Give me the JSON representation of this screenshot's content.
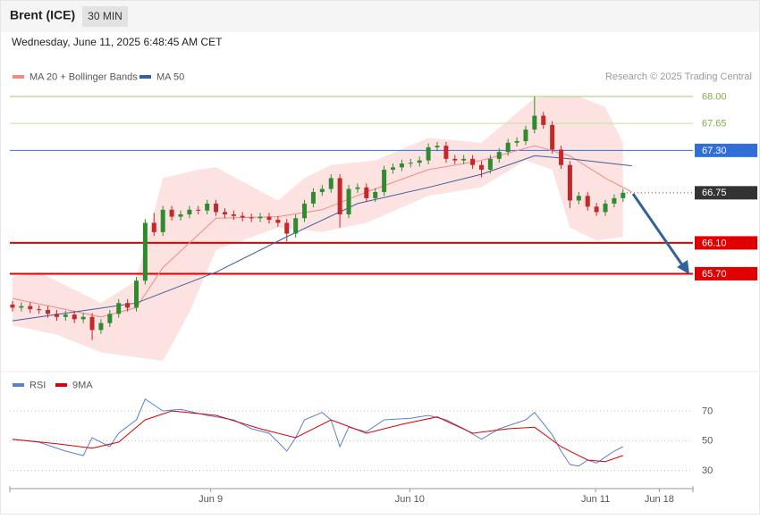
{
  "header": {
    "title": "Brent (ICE)",
    "timeframe": "30 MIN",
    "timestamp": "Wednesday, June 11, 2025 6:48:45 AM CET",
    "attribution": "Research © 2025 Trading Central"
  },
  "chart_data": [
    {
      "type": "candlestick",
      "up_color": "#2e8b2e",
      "down_color": "#c62828",
      "xlim": [
        -0.3,
        76.9
      ],
      "ylim": [
        64.5,
        68.15
      ],
      "x": [
        0,
        1,
        2,
        3,
        4,
        5,
        6,
        7,
        8,
        9,
        10,
        11,
        12,
        13,
        14,
        15,
        16,
        17,
        18,
        19,
        20,
        21,
        22,
        23,
        24,
        25,
        26,
        27,
        28,
        29,
        30,
        31,
        32,
        33,
        34,
        35,
        36,
        37,
        38,
        39,
        40,
        41,
        42,
        43,
        44,
        45,
        46,
        47,
        48,
        49,
        50,
        51,
        52,
        53,
        54,
        55,
        56,
        57,
        58,
        59,
        60,
        61,
        62,
        63,
        64,
        65,
        66,
        67,
        68,
        69
      ],
      "open": [
        65.3,
        65.26,
        65.28,
        65.24,
        65.23,
        65.18,
        65.14,
        65.17,
        65.11,
        65.14,
        64.97,
        65.06,
        65.18,
        65.32,
        65.26,
        65.61,
        66.36,
        66.24,
        66.53,
        66.44,
        66.47,
        66.53,
        66.52,
        66.61,
        66.5,
        66.47,
        66.45,
        66.43,
        66.42,
        66.44,
        66.4,
        66.36,
        66.22,
        66.42,
        66.61,
        66.76,
        66.8,
        66.94,
        66.47,
        66.8,
        66.82,
        66.68,
        66.76,
        67.05,
        67.08,
        67.13,
        67.14,
        67.17,
        67.34,
        67.36,
        67.19,
        67.17,
        67.19,
        67.11,
        67.05,
        67.19,
        67.28,
        67.4,
        67.42,
        67.57,
        67.75,
        67.63,
        67.31,
        67.11,
        66.65,
        66.71,
        66.57,
        66.5,
        66.61,
        66.68
      ],
      "high": [
        65.35,
        65.33,
        65.33,
        65.29,
        65.28,
        65.23,
        65.22,
        65.22,
        65.19,
        65.19,
        65.11,
        65.23,
        65.37,
        65.37,
        65.66,
        66.41,
        66.49,
        66.58,
        66.58,
        66.52,
        66.58,
        66.58,
        66.66,
        66.66,
        66.55,
        66.52,
        66.5,
        66.48,
        66.49,
        66.49,
        66.45,
        66.41,
        66.47,
        66.66,
        66.81,
        66.85,
        66.99,
        66.99,
        66.85,
        66.87,
        66.87,
        66.81,
        67.1,
        67.13,
        67.18,
        67.19,
        67.22,
        67.39,
        67.41,
        67.41,
        67.24,
        67.24,
        67.24,
        67.16,
        67.24,
        67.33,
        67.45,
        67.47,
        67.62,
        68.0,
        67.8,
        67.68,
        67.36,
        67.16,
        66.76,
        66.76,
        66.62,
        66.66,
        66.73,
        66.8
      ],
      "low": [
        65.21,
        65.21,
        65.19,
        65.18,
        65.13,
        65.09,
        65.09,
        65.06,
        65.06,
        64.84,
        64.92,
        65.01,
        65.13,
        65.21,
        65.21,
        65.56,
        66.19,
        66.19,
        66.39,
        66.39,
        66.42,
        66.47,
        66.47,
        66.45,
        66.42,
        66.4,
        66.38,
        66.37,
        66.37,
        66.35,
        66.31,
        66.12,
        66.17,
        66.37,
        66.56,
        66.71,
        66.75,
        66.3,
        66.42,
        66.75,
        66.63,
        66.63,
        66.71,
        67.0,
        67.03,
        67.08,
        67.09,
        67.12,
        67.29,
        67.14,
        67.12,
        67.12,
        67.06,
        66.95,
        67.0,
        67.14,
        67.23,
        67.35,
        67.37,
        67.52,
        67.58,
        67.26,
        67.06,
        66.55,
        66.6,
        66.52,
        66.45,
        66.45,
        66.56,
        66.63
      ],
      "close": [
        65.26,
        65.28,
        65.24,
        65.23,
        65.18,
        65.14,
        65.17,
        65.11,
        65.14,
        64.97,
        65.06,
        65.18,
        65.32,
        65.26,
        65.61,
        66.36,
        66.24,
        66.53,
        66.44,
        66.47,
        66.53,
        66.52,
        66.61,
        66.5,
        66.47,
        66.45,
        66.43,
        66.42,
        66.44,
        66.4,
        66.36,
        66.22,
        66.42,
        66.61,
        66.76,
        66.8,
        66.94,
        66.47,
        66.8,
        66.82,
        66.68,
        66.76,
        67.05,
        67.08,
        67.13,
        67.14,
        67.17,
        67.34,
        67.36,
        67.19,
        67.17,
        67.19,
        67.11,
        67.05,
        67.19,
        67.28,
        67.4,
        67.42,
        67.57,
        67.75,
        67.63,
        67.31,
        67.11,
        66.65,
        66.71,
        66.57,
        66.5,
        66.61,
        66.68,
        66.75
      ],
      "bands": {
        "color": "#fde2e2",
        "upper": {
          "x": [
            0,
            3,
            10,
            14,
            17,
            21,
            23,
            30,
            33,
            36,
            41,
            47,
            53,
            59,
            61,
            64,
            67,
            69
          ],
          "values": [
            65.66,
            65.72,
            65.32,
            65.61,
            66.94,
            67.05,
            67.08,
            66.65,
            66.94,
            67.11,
            67.17,
            67.46,
            67.4,
            67.98,
            68.0,
            68.0,
            67.86,
            67.4
          ]
        },
        "lower": {
          "x": [
            0,
            5,
            10,
            17,
            20,
            23,
            30,
            35,
            40,
            47,
            53,
            58,
            61,
            63,
            66,
            69
          ],
          "values": [
            65.03,
            64.91,
            64.68,
            64.57,
            65.2,
            66.01,
            66.3,
            66.24,
            66.36,
            66.71,
            66.82,
            67.17,
            67.05,
            66.3,
            66.13,
            66.18
          ]
        }
      },
      "series": [
        {
          "name": "MA 20 + Bollinger Bands",
          "color": "#f28b82",
          "x": [
            0,
            5,
            10,
            14,
            17,
            23,
            30,
            35,
            40,
            47,
            53,
            59,
            63,
            67,
            70
          ],
          "values": [
            65.38,
            65.26,
            65.14,
            65.26,
            65.78,
            66.42,
            66.44,
            66.53,
            66.76,
            67.05,
            67.17,
            67.36,
            67.23,
            66.94,
            66.76
          ]
        },
        {
          "name": "MA 50",
          "color": "#3a5fa0",
          "x": [
            0,
            14,
            23,
            31,
            39,
            47,
            53,
            59,
            63,
            70
          ],
          "values": [
            65.09,
            65.32,
            65.72,
            66.18,
            66.61,
            66.82,
            66.99,
            67.23,
            67.19,
            67.1
          ]
        }
      ],
      "levels": [
        {
          "value": 68,
          "label": "68.00",
          "color": "#9ccc65",
          "text_color": "#7cb342",
          "box": false,
          "width": 1,
          "dotted": false
        },
        {
          "value": 67.65,
          "label": "67.65",
          "color": "#c5e1a5",
          "text_color": "#7cb342",
          "box": false,
          "width": 1,
          "dotted": false
        },
        {
          "value": 67.3,
          "label": "67.30",
          "color": "#2f6fd6",
          "text_color": "#ffffff",
          "box": true,
          "width": 1,
          "dotted": false
        },
        {
          "value": 66.75,
          "label": "66.75",
          "color": "#333333",
          "text_color": "#ffffff",
          "box": true,
          "width": 1,
          "dotted": true
        },
        {
          "value": 66.1,
          "label": "66.10",
          "color": "#e00000",
          "text_color": "#ffffff",
          "box": true,
          "width": 2,
          "dotted": false
        },
        {
          "value": 65.7,
          "label": "65.70",
          "color": "#e00000",
          "text_color": "#ffffff",
          "box": true,
          "width": 2,
          "dotted": false
        }
      ]
    },
    {
      "type": "line",
      "xlim": [
        -0.3,
        76.9
      ],
      "ylim": [
        19,
        82
      ],
      "yticks": [
        30,
        50,
        70
      ],
      "grid": true,
      "xticks": [
        {
          "value": 22.4,
          "label": "Jun 9"
        },
        {
          "value": 44.9,
          "label": "Jun 10"
        },
        {
          "value": 65.9,
          "label": "Jun 11"
        },
        {
          "value": 73.1,
          "label": "Jun 18"
        }
      ],
      "series": [
        {
          "name": "RSI",
          "color": "#5b7fd6",
          "x": [
            0,
            3,
            6,
            8,
            9,
            11,
            12,
            14,
            15,
            17,
            19,
            22,
            25,
            27,
            29,
            31,
            32,
            33,
            35,
            36,
            37,
            38,
            40,
            42,
            45,
            47,
            49,
            51,
            53,
            55,
            58,
            59,
            61,
            62,
            63,
            64,
            65,
            66,
            68,
            69
          ],
          "values": [
            51,
            49,
            43,
            40,
            52,
            46,
            55,
            64,
            78,
            70,
            71,
            67,
            64,
            58,
            55,
            43,
            52,
            64,
            69,
            64,
            46,
            59,
            56,
            64,
            65,
            67,
            64,
            58,
            51,
            58,
            64,
            69,
            54,
            43,
            34,
            33,
            37,
            35,
            43,
            46
          ]
        },
        {
          "name": "9MA",
          "color": "#e00000",
          "x": [
            0,
            5,
            9,
            12,
            15,
            18,
            23,
            28,
            32,
            36,
            40,
            44,
            48,
            52,
            56,
            59,
            62,
            65,
            67,
            69
          ],
          "values": [
            51,
            48,
            45,
            49,
            64,
            70,
            67,
            58,
            52,
            64,
            55,
            61,
            66,
            55,
            58,
            59,
            46,
            37,
            36,
            40
          ]
        }
      ]
    }
  ]
}
